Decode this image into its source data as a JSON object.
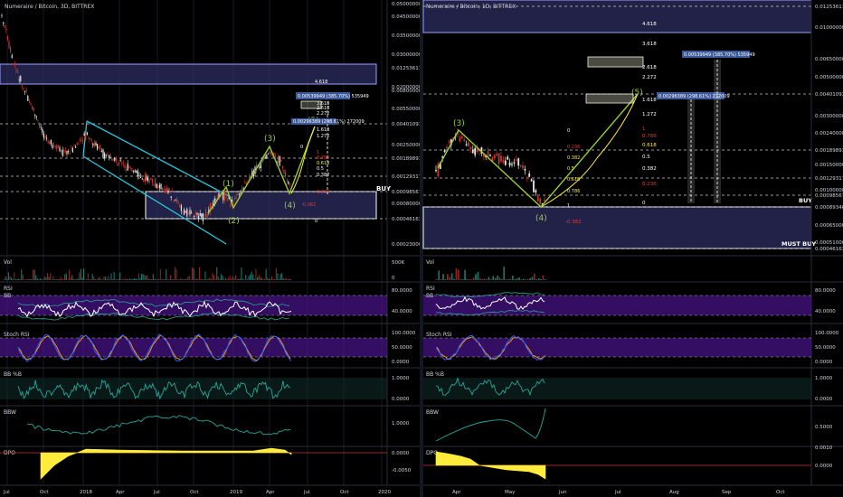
{
  "colors": {
    "background": "#000000",
    "grid": "#1e222d",
    "text": "#d1d4dc",
    "dashed_line": "#c8c8c8",
    "zone_fill": "#3a3a7a",
    "zone_border": "#9aa0ff",
    "up_candle": "#e8e8e8",
    "down_candle": "#c0392b",
    "wave": "#9acd32",
    "channel": "#26c6da",
    "rsi_band": "#4a148c",
    "rsi_line": "#ffffff",
    "bb_band": "#26a69a",
    "stoch_k": "#2962ff",
    "stoch_d": "#ff9800",
    "bbp": "#26a69a",
    "bbw": "#26a69a",
    "dpo": "#ffeb3b",
    "price_label": "#ffffff",
    "fib_red": "#e53935",
    "fib_yellow": "#ffeb3b",
    "target_box": "#f5f5dc",
    "target_label": "#3b5998"
  },
  "left": {
    "symbol": "Numeraire / Bitcoin, 3D, BITTREX",
    "price_axis": [
      "0.05000000",
      "0.04500000",
      "0.03500000",
      "0.03000000",
      "0.02000000",
      "0.01253611",
      "0.00800000",
      "0.00550000",
      "0.00401093",
      "0.00250000",
      "0.00189893",
      "0.00129317",
      "0.00098567",
      "0.00080000",
      "0.00046163",
      "0.00023000"
    ],
    "buy_label": "BUY",
    "wave_labels": [
      "(1)",
      "(2)",
      "(3)",
      "(4)",
      "(5)"
    ],
    "fib_labels": [
      "4.618",
      "3.618",
      "2.618",
      "2.272",
      "1.618",
      "1.272",
      "1",
      "0.786",
      "0.618",
      "0.5",
      "0.382",
      "0.236",
      "0",
      "-0.382"
    ],
    "target_label": "0.00539949 (385.70%) 535949",
    "target_label_2": "0.00296389 (298.61%) 272009",
    "time_axis": [
      "Jul",
      "Oct",
      "2018",
      "Apr",
      "Jul",
      "Oct",
      "2019",
      "Apr",
      "Jul",
      "Oct",
      "2020"
    ]
  },
  "right": {
    "symbol": "Numeraire / Bitcoin, 1D, BITTREX",
    "price_axis": [
      "0.01253611",
      "0.01000000",
      "0.00650000",
      "0.00500000",
      "0.00401093",
      "0.00300000",
      "0.00240000",
      "0.00189893",
      "0.00150000",
      "0.00129317",
      "0.00100000",
      "0.00098567",
      "0.00089346",
      "0.00065000",
      "0.00051000",
      "0.00046163"
    ],
    "buy_label": "BUY",
    "must_buy_label": "MUST BUY",
    "wave_labels": [
      "(3)",
      "(4)",
      "(5)"
    ],
    "fib_labels": [
      "4.618",
      "3.618",
      "2.618",
      "2.272",
      "1.618",
      "1.272",
      "1",
      "0.786",
      "0.618",
      "0.5",
      "0.382",
      "0.236",
      "0",
      "-0.382"
    ],
    "small_fib_labels": [
      "0",
      "1",
      "0.236",
      "0.382",
      "0.5",
      "0.618",
      "0.786",
      "0.382",
      "0.618",
      "0.786",
      "0.236",
      "0.382",
      "0.618",
      "0.786",
      "-0.382"
    ],
    "target_label": "0.00539949 (385.70%) 535949",
    "target_label_2": "0.00296389 (298.61%) 272009",
    "time_axis": [
      "Apr",
      "May",
      "Jun",
      "Jul",
      "Aug",
      "Sep",
      "Oct"
    ]
  },
  "panels": {
    "vol": {
      "label": "Vol",
      "left_axis": [
        "500K",
        "0"
      ]
    },
    "rsi": {
      "label": "RSI",
      "sublabel": "BB",
      "axis": [
        "80.0000",
        "40.0000"
      ]
    },
    "stoch": {
      "label": "Stoch RSI",
      "axis": [
        "100.0000",
        "50.0000",
        "0.0000"
      ]
    },
    "bbp": {
      "label": "BB %B",
      "axis": [
        "1.0000",
        "0.0000"
      ],
      "right_axis": [
        "1.0000",
        "0.0000"
      ]
    },
    "bbw": {
      "label": "BBW",
      "axis": [
        "1.0000"
      ],
      "right_axis": [
        "0.5000"
      ]
    },
    "dpo": {
      "label": "DPO",
      "axis": [
        "0.0000",
        "-0.0050"
      ],
      "right_axis": [
        "0.0010",
        "0.0000"
      ]
    }
  },
  "chart_data": [
    {
      "type": "candlestick",
      "title": "Numeraire / Bitcoin, 3D, BITTREX",
      "x_range": [
        "2017-07",
        "2020-01"
      ],
      "y_scale": "log",
      "ylim": [
        0.00023,
        0.05
      ],
      "price_levels": [
        0.01253611,
        0.00401093,
        0.00189893,
        0.00129317,
        0.00098567,
        0.00046163
      ],
      "buy_zone": [
        0.00046163,
        0.00098567
      ],
      "resistance_zone": [
        0.008,
        0.01253611
      ],
      "waves": [
        {
          "label": "(1)",
          "date": "2018-12",
          "price": 0.0011
        },
        {
          "label": "(2)",
          "date": "2019-01",
          "price": 0.00055
        },
        {
          "label": "(3)",
          "date": "2019-04",
          "price": 0.0022
        },
        {
          "label": "(4)",
          "date": "2019-06",
          "price": 0.00085
        },
        {
          "label": "(5)",
          "date": "2019-07",
          "price": 0.0045
        }
      ]
    },
    {
      "type": "candlestick",
      "title": "Numeraire / Bitcoin, 1D, BITTREX",
      "x_range": [
        "2019-03",
        "2019-10"
      ],
      "y_scale": "log",
      "ylim": [
        0.00046,
        0.0125
      ],
      "price_levels": [
        0.01253611,
        0.00401093,
        0.00189893,
        0.00129317,
        0.00098567,
        0.00089346,
        0.00046163
      ],
      "waves": [
        {
          "label": "(3)",
          "date": "2019-04-10",
          "price": 0.0024
        },
        {
          "label": "(4)",
          "date": "2019-05-25",
          "price": 0.00089
        },
        {
          "label": "(5)",
          "date": "2019-07-20",
          "price": 0.0045
        }
      ]
    }
  ]
}
